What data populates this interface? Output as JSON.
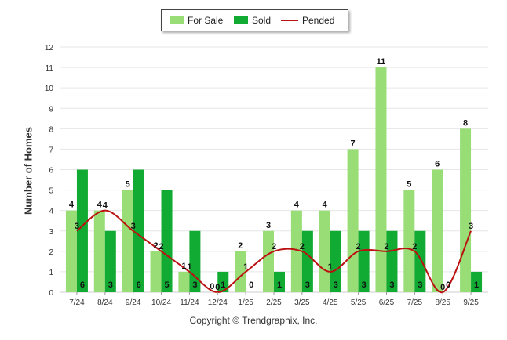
{
  "legend": {
    "for_sale": "For Sale",
    "sold": "Sold",
    "pended": "Pended"
  },
  "copyright": "Copyright © Trendgraphix, Inc.",
  "chart_data": {
    "type": "bar",
    "ylabel": "Number of Homes",
    "xlabel": "",
    "ylim": [
      0,
      12
    ],
    "yticks": [
      0,
      1,
      2,
      3,
      4,
      5,
      6,
      7,
      8,
      9,
      10,
      11,
      12
    ],
    "grid": true,
    "legend_position": "top-center",
    "categories": [
      "7/24",
      "8/24",
      "9/24",
      "10/24",
      "11/24",
      "12/24",
      "1/25",
      "2/25",
      "3/25",
      "4/25",
      "5/25",
      "6/25",
      "7/25",
      "8/25",
      "9/25"
    ],
    "series": [
      {
        "name": "For Sale",
        "kind": "bar",
        "color": "#99dd77",
        "values": [
          4,
          4,
          5,
          2,
          1,
          0,
          2,
          3,
          4,
          4,
          7,
          11,
          5,
          6,
          8
        ]
      },
      {
        "name": "Sold",
        "kind": "bar",
        "color": "#11aa33",
        "values": [
          6,
          3,
          6,
          5,
          3,
          1,
          0,
          1,
          3,
          3,
          3,
          3,
          3,
          0,
          1
        ]
      },
      {
        "name": "Pended",
        "kind": "line",
        "color": "#bb1111",
        "values": [
          3,
          4,
          3,
          2,
          1,
          0,
          1,
          2,
          2,
          1,
          2,
          2,
          2,
          0,
          3
        ]
      }
    ]
  }
}
